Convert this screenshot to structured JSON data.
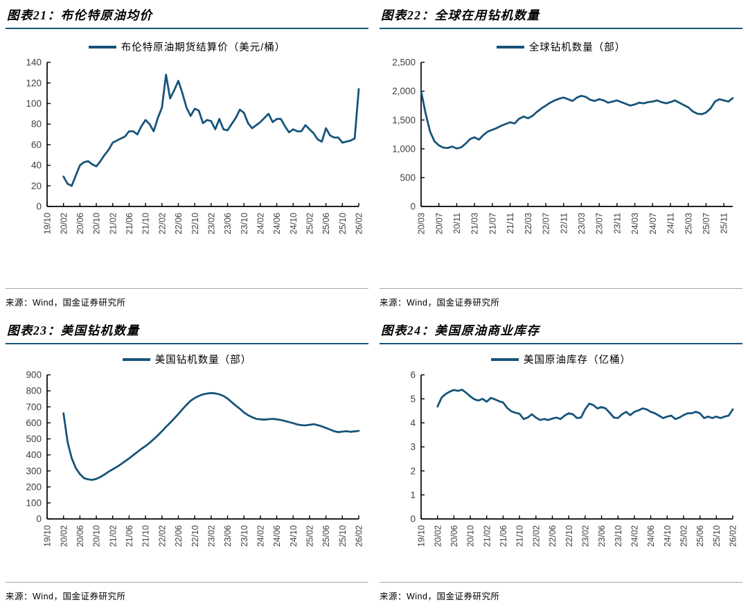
{
  "colors": {
    "line": "#17547A",
    "title_underline": "#17547A",
    "source_divider": "#9FA8B0",
    "axis": "#000000",
    "label": "#3F3F3F"
  },
  "panels": [
    {
      "title": "图表21：布伦特原油均价",
      "legend": "布伦特原油期货结算价（美元/桶）",
      "source": "来源：Wind，国金证券研究所"
    },
    {
      "title": "图表22：全球在用钻机数量",
      "legend": "全球钻机数量（部）",
      "source": "来源：Wind，国金证券研究所"
    },
    {
      "title": "图表23：美国钻机数量",
      "legend": "美国钻机数量（部）",
      "source": "来源：Wind，国金证券研究所"
    },
    {
      "title": "图表24：美国原油商业库存",
      "legend": "美国原油库存（亿桶）",
      "source": "来源：Wind，国金证券研究所"
    }
  ],
  "chart_data": [
    {
      "type": "line",
      "title": "布伦特原油均价",
      "ylabel": "美元/桶",
      "ylim": [
        0,
        140
      ],
      "y_tick_step": 20,
      "y_ticks": [
        "0",
        "20",
        "40",
        "60",
        "80",
        "100",
        "120",
        "140"
      ],
      "x_tick_labels": [
        "19/10",
        "20/02",
        "20/06",
        "20/10",
        "21/02",
        "21/06",
        "21/10",
        "22/02",
        "22/06",
        "22/10",
        "23/02",
        "23/06",
        "23/10",
        "24/02",
        "24/06",
        "24/10",
        "25/02",
        "25/06",
        "25/10",
        "26/02"
      ],
      "x_tick_step_months": 4,
      "x_total_months": 76,
      "grid": false,
      "legend_position": "top",
      "series": [
        {
          "name": "布伦特原油期货结算价（美元/桶）",
          "start_month": 4,
          "values": [
            29,
            22,
            20,
            30,
            40,
            43,
            44,
            41,
            39,
            44,
            50,
            55,
            62,
            64,
            66,
            68,
            73,
            73,
            70,
            78,
            84,
            80,
            73,
            86,
            96,
            128,
            105,
            113,
            122,
            110,
            96,
            88,
            95,
            93,
            81,
            84,
            83,
            75,
            85,
            75,
            74,
            80,
            86,
            94,
            91,
            81,
            76,
            79,
            82,
            86,
            90,
            82,
            85,
            85,
            78,
            72,
            75,
            73,
            73,
            79,
            75,
            71,
            65,
            63,
            76,
            69,
            67,
            67,
            62,
            63,
            64,
            66,
            114
          ]
        }
      ]
    },
    {
      "type": "line",
      "title": "全球在用钻机数量",
      "ylabel": "部",
      "ylim": [
        0,
        2500
      ],
      "y_tick_step": 500,
      "y_ticks": [
        "0",
        "500",
        "1,000",
        "1,500",
        "2,000",
        "2,500"
      ],
      "x_tick_labels": [
        "20/03",
        "20/07",
        "20/11",
        "21/03",
        "21/07",
        "21/11",
        "22/03",
        "22/07",
        "22/11",
        "23/03",
        "23/07",
        "23/11",
        "24/03",
        "24/07",
        "24/11",
        "25/03",
        "25/07",
        "25/11"
      ],
      "x_tick_step_months": 4,
      "x_total_months": 70,
      "grid": false,
      "legend_position": "top",
      "series": [
        {
          "name": "全球钻机数量（部）",
          "start_month": 0,
          "values": [
            2000,
            1620,
            1300,
            1130,
            1060,
            1020,
            1015,
            1040,
            1005,
            1025,
            1090,
            1170,
            1200,
            1160,
            1240,
            1300,
            1330,
            1360,
            1400,
            1430,
            1460,
            1440,
            1520,
            1560,
            1530,
            1570,
            1640,
            1700,
            1750,
            1800,
            1840,
            1870,
            1890,
            1860,
            1830,
            1890,
            1920,
            1900,
            1850,
            1830,
            1860,
            1840,
            1800,
            1820,
            1840,
            1810,
            1780,
            1750,
            1770,
            1800,
            1790,
            1810,
            1820,
            1840,
            1810,
            1790,
            1810,
            1840,
            1800,
            1760,
            1720,
            1650,
            1610,
            1600,
            1630,
            1700,
            1820,
            1860,
            1840,
            1820,
            1880
          ]
        }
      ]
    },
    {
      "type": "line",
      "title": "美国钻机数量",
      "ylabel": "部",
      "ylim": [
        0,
        900
      ],
      "y_tick_step": 100,
      "y_ticks": [
        "0",
        "100",
        "200",
        "300",
        "400",
        "500",
        "600",
        "700",
        "800",
        "900"
      ],
      "x_tick_labels": [
        "19/10",
        "20/02",
        "20/06",
        "20/10",
        "21/02",
        "21/06",
        "21/10",
        "22/02",
        "22/06",
        "22/10",
        "23/02",
        "23/06",
        "23/10",
        "24/02",
        "24/06",
        "24/10",
        "25/02",
        "25/06",
        "25/10",
        "26/02"
      ],
      "x_tick_step_months": 4,
      "x_total_months": 76,
      "grid": false,
      "legend_position": "top",
      "series": [
        {
          "name": "美国钻机数量（部）",
          "start_month": 4,
          "values": [
            660,
            480,
            380,
            318,
            280,
            255,
            247,
            244,
            250,
            262,
            278,
            295,
            310,
            325,
            342,
            360,
            378,
            398,
            418,
            438,
            455,
            475,
            498,
            522,
            548,
            575,
            600,
            628,
            655,
            685,
            712,
            738,
            755,
            768,
            778,
            783,
            786,
            784,
            778,
            768,
            752,
            730,
            708,
            688,
            665,
            648,
            635,
            625,
            622,
            620,
            623,
            625,
            622,
            618,
            612,
            605,
            598,
            590,
            586,
            584,
            588,
            592,
            586,
            578,
            568,
            558,
            548,
            542,
            545,
            548,
            544,
            547,
            550
          ]
        }
      ]
    },
    {
      "type": "line",
      "title": "美国原油商业库存",
      "ylabel": "亿桶",
      "ylim": [
        0,
        6
      ],
      "y_tick_step": 1,
      "y_ticks": [
        "0",
        "1",
        "2",
        "3",
        "4",
        "5",
        "6"
      ],
      "x_tick_labels": [
        "19/10",
        "20/02",
        "20/06",
        "20/10",
        "21/02",
        "21/06",
        "21/10",
        "22/02",
        "22/06",
        "22/10",
        "23/02",
        "23/06",
        "23/10",
        "24/02",
        "24/06",
        "24/10",
        "25/02",
        "25/06",
        "25/10",
        "26/02"
      ],
      "x_tick_step_months": 4,
      "x_total_months": 76,
      "grid": false,
      "legend_position": "top",
      "series": [
        {
          "name": "美国原油库存（亿桶）",
          "start_month": 4,
          "values": [
            4.68,
            5.05,
            5.2,
            5.3,
            5.37,
            5.33,
            5.38,
            5.25,
            5.1,
            4.98,
            4.93,
            5.0,
            4.88,
            5.04,
            4.98,
            4.9,
            4.85,
            4.62,
            4.48,
            4.42,
            4.38,
            4.16,
            4.22,
            4.36,
            4.22,
            4.12,
            4.16,
            4.12,
            4.18,
            4.22,
            4.16,
            4.3,
            4.4,
            4.36,
            4.2,
            4.22,
            4.56,
            4.8,
            4.74,
            4.6,
            4.66,
            4.6,
            4.42,
            4.22,
            4.2,
            4.36,
            4.46,
            4.32,
            4.46,
            4.52,
            4.6,
            4.56,
            4.46,
            4.4,
            4.3,
            4.2,
            4.26,
            4.3,
            4.16,
            4.22,
            4.32,
            4.4,
            4.4,
            4.46,
            4.4,
            4.2,
            4.26,
            4.2,
            4.26,
            4.2,
            4.26,
            4.3,
            4.56
          ]
        }
      ]
    }
  ]
}
